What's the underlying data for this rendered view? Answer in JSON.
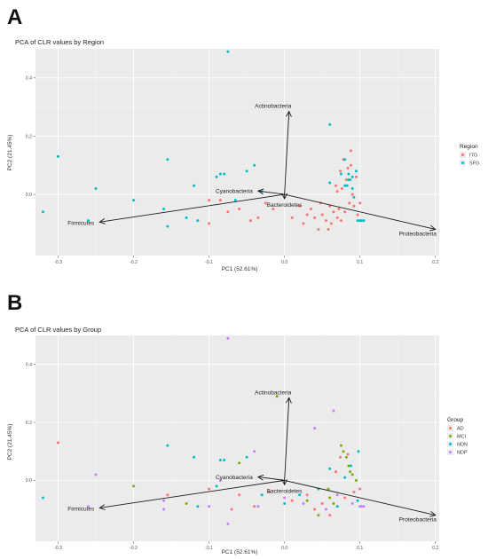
{
  "panels": [
    {
      "letter": "A",
      "title": "PCA of CLR values by Region"
    },
    {
      "letter": "B",
      "title": "PCA of CLR values by Group"
    }
  ],
  "colors": {
    "panel_bg": "#ebebeb",
    "grid_major": "#ffffff",
    "grid_minor": "#f4f4f4",
    "arrow": "#1a1a1a"
  },
  "chart_data": [
    {
      "type": "scatter",
      "title": "PCA of CLR values by Region",
      "xlabel": "PC1 (52.61%)",
      "ylabel": "PC2 (21.45%)",
      "xlim": [
        -0.33,
        0.205
      ],
      "ylim": [
        -0.21,
        0.5
      ],
      "xticks": [
        -0.3,
        -0.2,
        -0.1,
        0.0,
        0.1,
        0.2
      ],
      "xtick_labels": [
        "-0.3",
        "-0.2",
        "-0.1",
        "0.0",
        "0.1",
        "0.2"
      ],
      "yticks": [
        0.0,
        0.2,
        0.4
      ],
      "ytick_labels": [
        "0.0",
        "0.2",
        "0.4"
      ],
      "grid": true,
      "legend_title": "Region",
      "legend_position": "right",
      "series": [
        {
          "name": "ITG",
          "color": "#f8766d",
          "points": [
            [
              -0.1,
              -0.02
            ],
            [
              -0.1,
              -0.1
            ],
            [
              -0.085,
              -0.02
            ],
            [
              -0.075,
              -0.06
            ],
            [
              -0.06,
              -0.05
            ],
            [
              -0.045,
              -0.09
            ],
            [
              -0.035,
              -0.08
            ],
            [
              -0.025,
              -0.03
            ],
            [
              -0.015,
              -0.05
            ],
            [
              0.01,
              -0.08
            ],
            [
              0.02,
              -0.04
            ],
            [
              0.025,
              -0.1
            ],
            [
              0.03,
              -0.07
            ],
            [
              0.035,
              -0.05
            ],
            [
              0.04,
              -0.08
            ],
            [
              0.045,
              -0.12
            ],
            [
              0.048,
              -0.03
            ],
            [
              0.05,
              -0.07
            ],
            [
              0.055,
              -0.09
            ],
            [
              0.058,
              -0.12
            ],
            [
              0.06,
              -0.04
            ],
            [
              0.062,
              -0.1
            ],
            [
              0.065,
              -0.06
            ],
            [
              0.068,
              0.03
            ],
            [
              0.07,
              -0.08
            ],
            [
              0.072,
              -0.05
            ],
            [
              0.074,
              0.08
            ],
            [
              0.075,
              -0.09
            ],
            [
              0.078,
              0.12
            ],
            [
              0.08,
              -0.06
            ],
            [
              0.082,
              0.05
            ],
            [
              0.084,
              0.09
            ],
            [
              0.086,
              -0.03
            ],
            [
              0.088,
              0.15
            ],
            [
              0.09,
              0.0
            ],
            [
              0.092,
              -0.04
            ],
            [
              0.095,
              0.06
            ],
            [
              0.097,
              -0.07
            ],
            [
              0.1,
              -0.03
            ],
            [
              0.07,
              0.01
            ],
            [
              0.076,
              0.02
            ],
            [
              0.088,
              0.1
            ]
          ]
        },
        {
          "name": "SFG",
          "color": "#00bfc4",
          "points": [
            [
              -0.3,
              0.13
            ],
            [
              -0.32,
              -0.06
            ],
            [
              -0.25,
              0.02
            ],
            [
              -0.26,
              -0.09
            ],
            [
              -0.2,
              -0.02
            ],
            [
              -0.155,
              0.12
            ],
            [
              -0.155,
              -0.11
            ],
            [
              -0.16,
              -0.05
            ],
            [
              -0.13,
              -0.08
            ],
            [
              -0.12,
              0.03
            ],
            [
              -0.115,
              -0.09
            ],
            [
              -0.09,
              0.06
            ],
            [
              -0.085,
              0.07
            ],
            [
              -0.08,
              0.07
            ],
            [
              -0.075,
              0.49
            ],
            [
              -0.065,
              -0.02
            ],
            [
              -0.05,
              0.08
            ],
            [
              -0.04,
              0.1
            ],
            [
              -0.03,
              0.01
            ],
            [
              0.06,
              0.04
            ],
            [
              0.06,
              0.24
            ],
            [
              0.075,
              0.07
            ],
            [
              0.08,
              0.12
            ],
            [
              0.083,
              0.03
            ],
            [
              0.085,
              0.07
            ],
            [
              0.087,
              0.05
            ],
            [
              0.09,
              0.02
            ],
            [
              0.092,
              -0.01
            ],
            [
              0.095,
              0.08
            ],
            [
              0.097,
              -0.09
            ],
            [
              0.1,
              -0.09
            ],
            [
              0.102,
              -0.09
            ],
            [
              0.105,
              -0.09
            ],
            [
              0.085,
              0.05
            ],
            [
              0.09,
              0.06
            ],
            [
              0.08,
              0.03
            ]
          ]
        }
      ],
      "loadings": [
        {
          "name": "Actinobacteria",
          "x": 0.006,
          "y": 0.285
        },
        {
          "name": "Cyanobacteria",
          "x": -0.035,
          "y": 0.012
        },
        {
          "name": "Bacteroidetes",
          "x": 0.0,
          "y": -0.015
        },
        {
          "name": "Firmicutes",
          "x": -0.245,
          "y": -0.095
        },
        {
          "name": "Proteobacteria",
          "x": 0.2,
          "y": -0.12
        }
      ]
    },
    {
      "type": "scatter",
      "title": "PCA of CLR values by Group",
      "xlabel": "PC1 (52.61%)",
      "ylabel": "PC2 (21.45%)",
      "xlim": [
        -0.33,
        0.205
      ],
      "ylim": [
        -0.21,
        0.5
      ],
      "xticks": [
        -0.3,
        -0.2,
        -0.1,
        0.0,
        0.1,
        0.2
      ],
      "xtick_labels": [
        "-0.3",
        "-0.2",
        "-0.1",
        "0.0",
        "0.1",
        "0.2"
      ],
      "yticks": [
        0.0,
        0.2,
        0.4
      ],
      "ytick_labels": [
        "0.0",
        "0.2",
        "0.4"
      ],
      "grid": true,
      "legend_title": "Group",
      "legend_position": "right",
      "series": [
        {
          "name": "AD",
          "color": "#f8766d",
          "points": [
            [
              -0.3,
              0.13
            ],
            [
              -0.1,
              -0.03
            ],
            [
              -0.07,
              -0.1
            ],
            [
              -0.06,
              -0.05
            ],
            [
              -0.04,
              -0.09
            ],
            [
              0.01,
              -0.07
            ],
            [
              0.03,
              -0.05
            ],
            [
              0.05,
              -0.08
            ],
            [
              0.06,
              -0.12
            ],
            [
              0.068,
              0.03
            ],
            [
              0.074,
              0.08
            ],
            [
              0.08,
              -0.06
            ],
            [
              0.084,
              0.09
            ],
            [
              0.092,
              -0.04
            ],
            [
              0.1,
              -0.03
            ],
            [
              -0.155,
              -0.05
            ],
            [
              -0.02,
              -0.04
            ],
            [
              0.04,
              -0.1
            ]
          ]
        },
        {
          "name": "MCI",
          "color": "#7cae00",
          "points": [
            [
              -0.01,
              0.29
            ],
            [
              -0.2,
              -0.02
            ],
            [
              -0.13,
              -0.08
            ],
            [
              -0.06,
              0.06
            ],
            [
              0.03,
              -0.07
            ],
            [
              0.045,
              -0.12
            ],
            [
              0.058,
              -0.03
            ],
            [
              0.06,
              -0.06
            ],
            [
              0.075,
              0.12
            ],
            [
              0.078,
              0.1
            ],
            [
              0.082,
              0.08
            ],
            [
              0.085,
              0.05
            ],
            [
              0.087,
              0.03
            ],
            [
              0.09,
              0.02
            ],
            [
              0.095,
              0.0
            ],
            [
              0.065,
              -0.08
            ]
          ]
        },
        {
          "name": "NDN",
          "color": "#00bfc4",
          "points": [
            [
              -0.32,
              -0.06
            ],
            [
              -0.155,
              0.12
            ],
            [
              -0.115,
              -0.09
            ],
            [
              -0.09,
              -0.02
            ],
            [
              -0.085,
              0.07
            ],
            [
              -0.08,
              0.07
            ],
            [
              -0.05,
              0.08
            ],
            [
              -0.03,
              -0.05
            ],
            [
              0.0,
              -0.08
            ],
            [
              0.02,
              -0.05
            ],
            [
              0.045,
              -0.03
            ],
            [
              0.06,
              0.04
            ],
            [
              0.07,
              -0.09
            ],
            [
              0.08,
              0.01
            ],
            [
              0.088,
              0.05
            ],
            [
              0.097,
              -0.07
            ],
            [
              0.098,
              0.1
            ],
            [
              -0.12,
              0.08
            ]
          ]
        },
        {
          "name": "NDP",
          "color": "#c77cff",
          "points": [
            [
              -0.075,
              0.49
            ],
            [
              -0.25,
              0.02
            ],
            [
              -0.26,
              -0.09
            ],
            [
              -0.16,
              -0.1
            ],
            [
              -0.1,
              -0.09
            ],
            [
              -0.085,
              0.0
            ],
            [
              -0.075,
              -0.15
            ],
            [
              -0.04,
              0.1
            ],
            [
              -0.035,
              -0.09
            ],
            [
              0.0,
              -0.06
            ],
            [
              0.025,
              -0.08
            ],
            [
              0.04,
              0.18
            ],
            [
              0.055,
              -0.1
            ],
            [
              0.065,
              0.24
            ],
            [
              0.09,
              -0.08
            ],
            [
              0.1,
              -0.09
            ],
            [
              0.102,
              -0.09
            ],
            [
              0.105,
              -0.09
            ],
            [
              -0.16,
              -0.07
            ],
            [
              0.07,
              -0.05
            ]
          ]
        }
      ],
      "loadings": [
        {
          "name": "Actinobacteria",
          "x": 0.006,
          "y": 0.285
        },
        {
          "name": "Cyanobacteria",
          "x": -0.035,
          "y": 0.012
        },
        {
          "name": "Bacteroidetes",
          "x": 0.0,
          "y": -0.015
        },
        {
          "name": "Firmicutes",
          "x": -0.245,
          "y": -0.095
        },
        {
          "name": "Proteobacteria",
          "x": 0.2,
          "y": -0.12
        }
      ]
    }
  ]
}
